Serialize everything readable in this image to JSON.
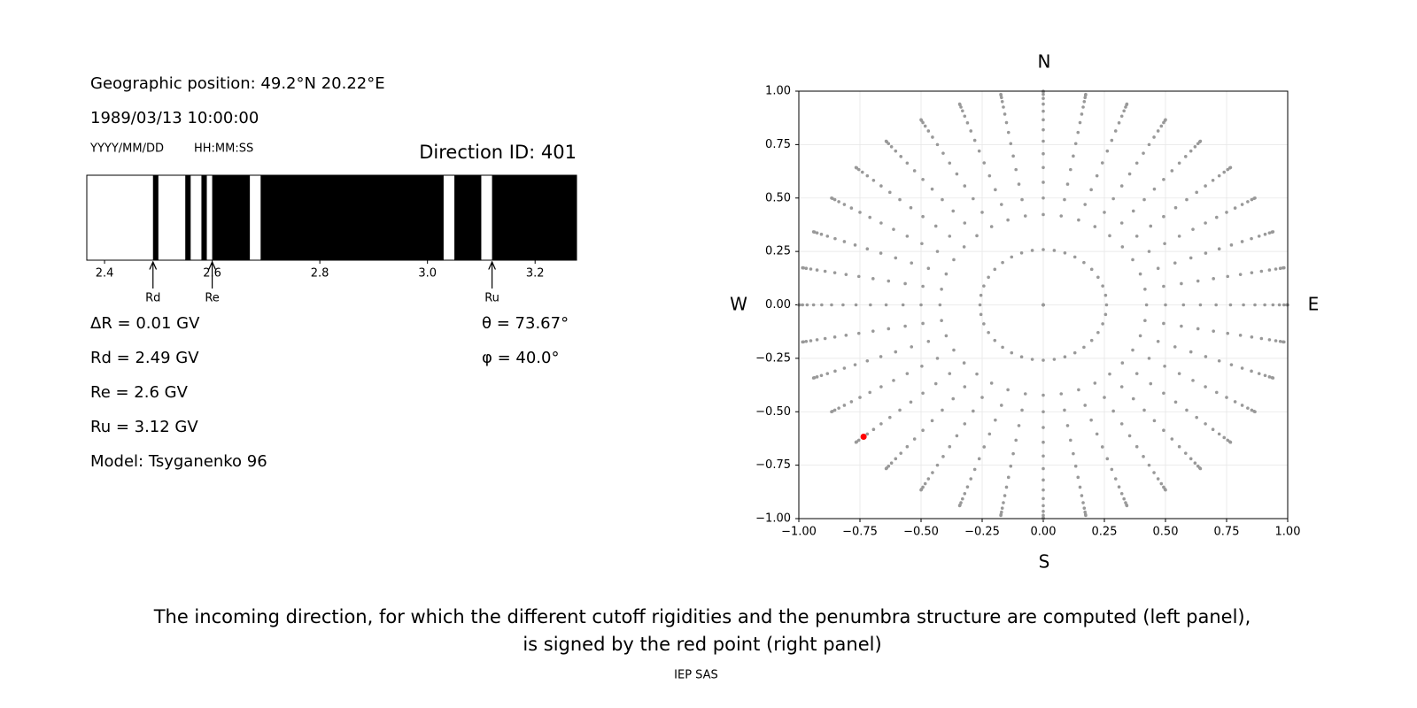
{
  "header": {
    "position": "Geographic position: 49.2°N 20.22°E",
    "datetime": "1989/03/13 10:00:00",
    "date_format": "YYYY/MM/DD",
    "time_format": "HH:MM:SS",
    "direction": "Direction ID: 401"
  },
  "results": [
    "ΔR = 0.01 GV",
    "Rd = 2.49 GV",
    "Re = 2.6 GV",
    "Ru = 3.12 GV",
    "Model: Tsyganenko 96"
  ],
  "angles": [
    "θ = 73.67°",
    "φ = 40.0°"
  ],
  "chart_data": [
    {
      "type": "penumbra",
      "xlim": [
        2.367,
        3.277
      ],
      "xticks": [
        2.4,
        2.6,
        2.8,
        {
          "value": 3,
          "label": "3.0"
        },
        3.2
      ],
      "band_color": "#000000",
      "bands": [
        [
          2.49,
          2.5
        ],
        [
          2.55,
          2.56
        ],
        [
          2.58,
          2.59
        ],
        [
          2.6,
          2.67
        ],
        [
          2.69,
          3.03
        ],
        [
          3.05,
          3.1
        ],
        [
          3.12,
          3.277
        ]
      ],
      "markers": [
        {
          "label": "Rd",
          "value": 2.49
        },
        {
          "label": "Re",
          "value": 2.6
        },
        {
          "label": "Ru",
          "value": 3.12
        }
      ]
    },
    {
      "type": "scatter",
      "xlim": [
        -1,
        1
      ],
      "ylim": [
        -1,
        1
      ],
      "grid": true,
      "xticks": [
        {
          "value": -1,
          "label": "−1.00"
        },
        {
          "value": -0.75,
          "label": "−0.75"
        },
        {
          "value": -0.5,
          "label": "−0.50"
        },
        {
          "value": -0.25,
          "label": "−0.25"
        },
        {
          "value": 0,
          "label": "0.00"
        },
        {
          "value": 0.25,
          "label": "0.25"
        },
        {
          "value": 0.5,
          "label": "0.50"
        },
        {
          "value": 0.75,
          "label": "0.75"
        },
        {
          "value": 1,
          "label": "1.00"
        }
      ],
      "yticks": [
        {
          "value": -1,
          "label": "−1.00"
        },
        {
          "value": -0.75,
          "label": "−0.75"
        },
        {
          "value": -0.5,
          "label": "−0.50"
        },
        {
          "value": -0.25,
          "label": "−0.25"
        },
        {
          "value": 0,
          "label": "0.00"
        },
        {
          "value": 0.25,
          "label": "0.25"
        },
        {
          "value": 0.5,
          "label": "0.50"
        },
        {
          "value": 0.75,
          "label": "0.75"
        },
        {
          "value": 1,
          "label": "1.00"
        }
      ],
      "grid_points": {
        "color": "#999999",
        "zenith": [
          0,
          15,
          25,
          30,
          35,
          40,
          45,
          50,
          55,
          60,
          65,
          70,
          75,
          80,
          85,
          90
        ],
        "azimuth": [
          0,
          10,
          20,
          30,
          40,
          50,
          60,
          70,
          80,
          90,
          100,
          110,
          120,
          130,
          140,
          150,
          160,
          170,
          180,
          190,
          200,
          210,
          220,
          230,
          240,
          250,
          260,
          270,
          280,
          290,
          300,
          310,
          320,
          330,
          340,
          350
        ]
      },
      "highlight": {
        "x": -0.735,
        "y": -0.617,
        "color": "#ff0000"
      },
      "directions": {
        "north": "N",
        "south": "S",
        "west": "W",
        "east": "E"
      }
    }
  ],
  "caption": [
    "The incoming direction, for which the different cutoff rigidities and the penumbra structure are computed (left panel),",
    "is signed by the red point (right panel)"
  ],
  "footer": "IEP SAS"
}
